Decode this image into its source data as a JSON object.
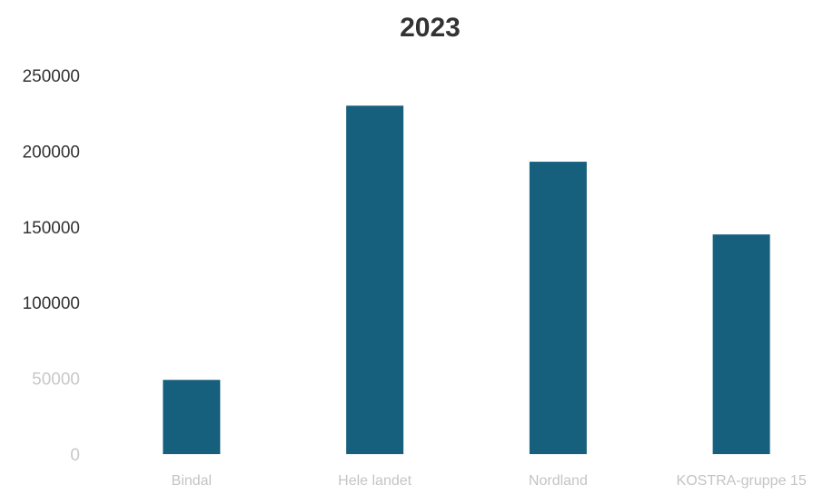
{
  "chart_data": {
    "type": "bar",
    "title": "2023",
    "xlabel": "",
    "ylabel": "",
    "categories": [
      "Bindal",
      "Hele landet",
      "Nordland",
      "KOSTRA-gruppe 15"
    ],
    "values": [
      49000,
      230000,
      193000,
      145000
    ],
    "ylim": [
      0,
      250000
    ],
    "yticks": [
      "0",
      "50000",
      "100000",
      "150000",
      "200000",
      "250000"
    ],
    "grid": false,
    "legend": "none",
    "bar_color": "#165f7d"
  }
}
